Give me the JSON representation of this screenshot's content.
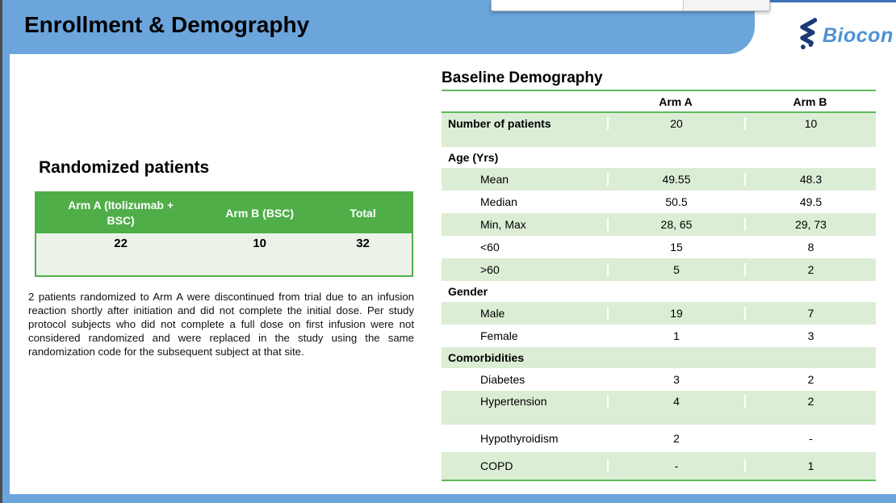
{
  "header": {
    "title": "Enrollment & Demography"
  },
  "logo": {
    "text": "Biocon"
  },
  "left_panel": {
    "title": "Randomized patients",
    "table": {
      "headers": [
        "Arm A (Itolizumab + BSC)",
        "Arm B (BSC)",
        "Total"
      ],
      "values": [
        "22",
        "10",
        "32"
      ]
    },
    "note": "2 patients randomized to Arm A were discontinued from trial due to an infusion reaction shortly after initiation and did not complete the initial dose. Per study protocol subjects who did not complete a full dose on first infusion were not considered randomized and were replaced in the study using the same randomization code for the subsequent subject at that site."
  },
  "right_panel": {
    "title": "Baseline Demography",
    "columns": [
      "Arm A",
      "Arm B"
    ],
    "rows": [
      {
        "label": "Number of patients",
        "a": "20",
        "b": "10",
        "bold": true,
        "shaded": true,
        "size": "tall"
      },
      {
        "label": "Age (Yrs)",
        "a": "",
        "b": "",
        "section": true
      },
      {
        "label": "Mean",
        "a": "49.55",
        "b": "48.3",
        "shaded": true,
        "indent": true
      },
      {
        "label": "Median",
        "a": "50.5",
        "b": "49.5",
        "indent": true
      },
      {
        "label": "Min, Max",
        "a": "28, 65",
        "b": "29, 73",
        "shaded": true,
        "indent": true
      },
      {
        "label": "<60",
        "a": "15",
        "b": "8",
        "indent": true
      },
      {
        "label": ">60",
        "a": "5",
        "b": "2",
        "shaded": true,
        "indent": true
      },
      {
        "label": "Gender",
        "a": "",
        "b": "",
        "section": true
      },
      {
        "label": "Male",
        "a": "19",
        "b": "7",
        "shaded": true,
        "indent": true
      },
      {
        "label": "Female",
        "a": "1",
        "b": "3",
        "indent": true
      },
      {
        "label": "Comorbidities",
        "a": "",
        "b": "",
        "section": true,
        "shaded": true
      },
      {
        "label": "Diabetes",
        "a": "3",
        "b": "2",
        "indent": true
      },
      {
        "label": "Hypertension",
        "a": "4",
        "b": "2",
        "shaded": true,
        "indent": true,
        "size": "tall"
      },
      {
        "label": "Hypothyroidism",
        "a": "2",
        "b": "-",
        "indent": true,
        "size": "mid"
      },
      {
        "label": "COPD",
        "a": "-",
        "b": "1",
        "shaded": true,
        "indent": true,
        "size": "mid"
      }
    ]
  },
  "colors": {
    "header_blue": "#6BA5DC",
    "green_strong": "#4FAE48",
    "green_line": "#5FBA57",
    "row_shade": "#DCEDD5",
    "left_row_bg": "#EDF2E8",
    "logo_navy": "#1B3A75",
    "logo_blue": "#4E92D3"
  }
}
